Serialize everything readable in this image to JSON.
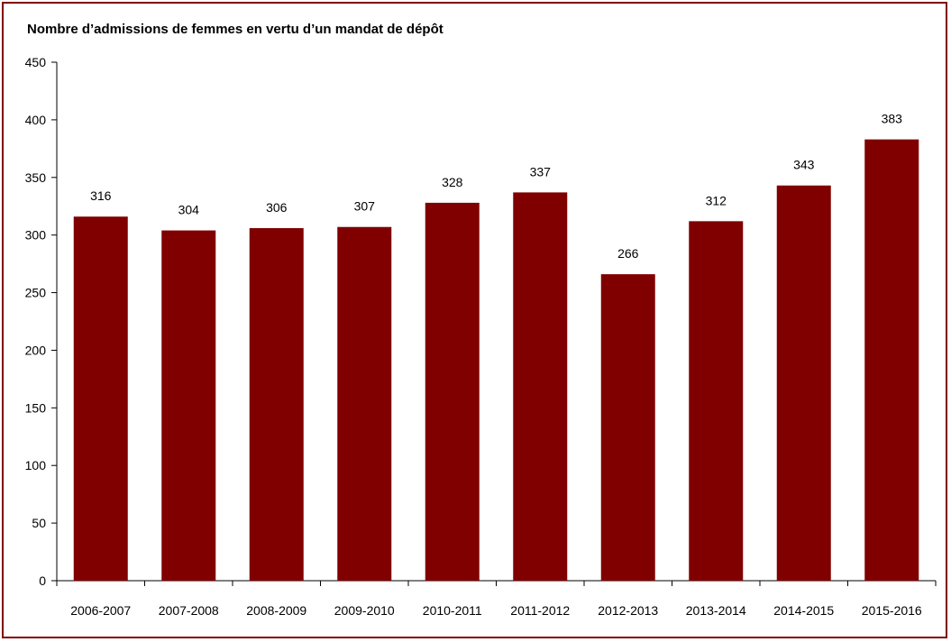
{
  "chart_data": {
    "type": "bar",
    "title": "Nombre d’admissions de femmes en vertu d’un mandat de dépôt",
    "xlabel": "",
    "ylabel": "",
    "categories": [
      "2006-2007",
      "2007-2008",
      "2008-2009",
      "2009-2010",
      "2010-2011",
      "2011-2012",
      "2012-2013",
      "2013-2014",
      "2014-2015",
      "2015-2016"
    ],
    "values": [
      316,
      304,
      306,
      307,
      328,
      337,
      266,
      312,
      343,
      383
    ],
    "ylim": [
      0,
      450
    ],
    "yticks": [
      0,
      50,
      100,
      150,
      200,
      250,
      300,
      350,
      400,
      450
    ],
    "grid": false,
    "legend": "none",
    "data_labels": true,
    "bar_color": "#800000",
    "frame_color": "#800000"
  }
}
